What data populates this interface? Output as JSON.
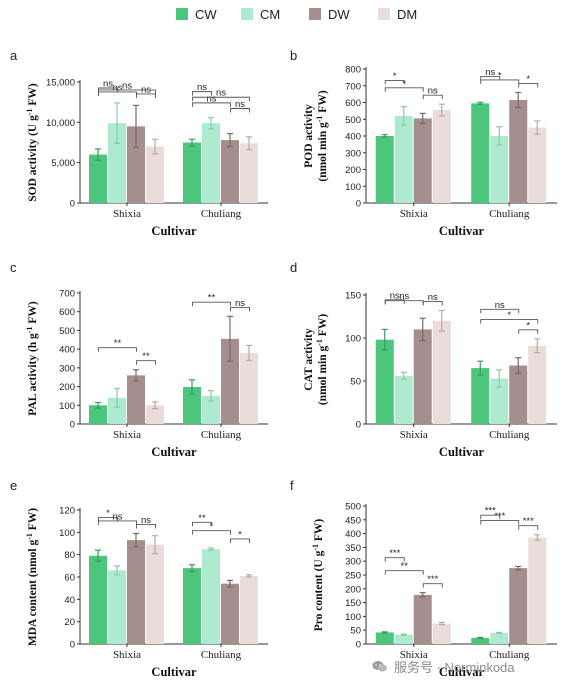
{
  "legend": {
    "items": [
      {
        "label": "CW",
        "color": "#4cc57d"
      },
      {
        "label": "CM",
        "color": "#aeead0"
      },
      {
        "label": "DW",
        "color": "#a48e8e"
      },
      {
        "label": "DM",
        "color": "#eadcd9"
      }
    ]
  },
  "watermark": {
    "text": "服务号 · Norminkoda"
  },
  "chart_data": [
    {
      "panel": "a",
      "type": "bar",
      "categories": [
        "Shixia",
        "Chuliang"
      ],
      "xlabel": "Cultivar",
      "ylabel": "SOD activity (U g⁻¹ FW)",
      "ylim": [
        0,
        15000
      ],
      "yticks": [
        0,
        5000,
        10000,
        15000
      ],
      "ytick_labels": [
        "0",
        "5,000",
        "10,000",
        "15,000"
      ],
      "series": [
        {
          "name": "CW",
          "values": [
            6000,
            7500
          ],
          "errors": [
            700,
            400
          ]
        },
        {
          "name": "CM",
          "values": [
            9900,
            9900
          ],
          "errors": [
            2500,
            700
          ]
        },
        {
          "name": "DW",
          "values": [
            9500,
            7800
          ],
          "errors": [
            2600,
            800
          ]
        },
        {
          "name": "DM",
          "values": [
            7000,
            7400
          ],
          "errors": [
            900,
            800
          ]
        }
      ],
      "significance": [
        {
          "from": 2,
          "to": 3,
          "label": "ns"
        },
        {
          "from": 0,
          "to": 2,
          "label": "ns"
        },
        {
          "from": 0,
          "to": 3,
          "label": "ns"
        },
        {
          "from": 0,
          "to": 1,
          "label": "ns"
        }
      ]
    },
    {
      "panel": "b",
      "type": "bar",
      "categories": [
        "Shixia",
        "Chuliang"
      ],
      "xlabel": "Cultivar",
      "ylabel": "POD activity (nmol min g⁻¹ FW)",
      "ylim": [
        0,
        800
      ],
      "yticks": [
        0,
        100,
        200,
        300,
        400,
        500,
        600,
        700,
        800
      ],
      "ytick_labels": [
        "0",
        "100",
        "200",
        "300",
        "400",
        "500",
        "600",
        "700",
        "800"
      ],
      "series": [
        {
          "name": "CW",
          "values": [
            400,
            595
          ],
          "errors": [
            8,
            6
          ]
        },
        {
          "name": "CM",
          "values": [
            520,
            400
          ],
          "errors": [
            55,
            55
          ]
        },
        {
          "name": "DW",
          "values": [
            505,
            615
          ],
          "errors": [
            30,
            45
          ]
        },
        {
          "name": "DM",
          "values": [
            555,
            450
          ],
          "errors": [
            35,
            40
          ]
        }
      ],
      "significance": [
        [
          {
            "from": 2,
            "to": 3,
            "label": "ns"
          },
          {
            "from": 0,
            "to": 2,
            "label": "*"
          },
          {
            "from": 0,
            "to": 1,
            "label": "*"
          }
        ],
        [
          {
            "from": 2,
            "to": 3,
            "label": "*"
          },
          {
            "from": 0,
            "to": 2,
            "label": "*"
          },
          {
            "from": 0,
            "to": 1,
            "label": "ns"
          }
        ]
      ]
    },
    {
      "panel": "c",
      "type": "bar",
      "categories": [
        "Shixia",
        "Chuliang"
      ],
      "xlabel": "Cultivar",
      "ylabel": "PAL activity (h g⁻¹ FW)",
      "ylim": [
        0,
        700
      ],
      "yticks": [
        0,
        100,
        200,
        300,
        400,
        500,
        600,
        700
      ],
      "ytick_labels": [
        "0",
        "100",
        "200",
        "300",
        "400",
        "500",
        "600",
        "700"
      ],
      "series": [
        {
          "name": "CW",
          "values": [
            100,
            198
          ],
          "errors": [
            15,
            38
          ]
        },
        {
          "name": "CM",
          "values": [
            140,
            150
          ],
          "errors": [
            50,
            28
          ]
        },
        {
          "name": "DW",
          "values": [
            260,
            455
          ],
          "errors": [
            30,
            120
          ]
        },
        {
          "name": "DM",
          "values": [
            100,
            380
          ],
          "errors": [
            18,
            40
          ]
        }
      ],
      "significance": [
        [
          {
            "from": 2,
            "to": 3,
            "label": "**"
          },
          {
            "from": 0,
            "to": 2,
            "label": "**"
          }
        ],
        [
          {
            "from": 2,
            "to": 3,
            "label": "ns"
          },
          {
            "from": 0,
            "to": 2,
            "label": "**"
          }
        ]
      ]
    },
    {
      "panel": "d",
      "type": "bar",
      "categories": [
        "Shixia",
        "Chuliang"
      ],
      "xlabel": "Cultivar",
      "ylabel": "CAT activity (nmol min g⁻¹ FW)",
      "ylim": [
        0,
        150
      ],
      "yticks": [
        0,
        50,
        100,
        150
      ],
      "ytick_labels": [
        "0",
        "50",
        "100",
        "150"
      ],
      "series": [
        {
          "name": "CW",
          "values": [
            98,
            65
          ],
          "errors": [
            12,
            8
          ]
        },
        {
          "name": "CM",
          "values": [
            56,
            53
          ],
          "errors": [
            4,
            10
          ]
        },
        {
          "name": "DW",
          "values": [
            110,
            68
          ],
          "errors": [
            13,
            9
          ]
        },
        {
          "name": "DM",
          "values": [
            120,
            91
          ],
          "errors": [
            12,
            8
          ]
        }
      ],
      "significance": [
        [
          {
            "from": 2,
            "to": 3,
            "label": "ns"
          },
          {
            "from": 0,
            "to": 2,
            "label": "ns"
          },
          {
            "from": 0,
            "to": 1,
            "label": "ns"
          }
        ],
        [
          {
            "from": 2,
            "to": 3,
            "label": "*"
          },
          {
            "from": 0,
            "to": 3,
            "label": "*"
          },
          {
            "from": 0,
            "to": 2,
            "label": "ns"
          }
        ]
      ]
    },
    {
      "panel": "e",
      "type": "bar",
      "categories": [
        "Shixia",
        "Chuliang"
      ],
      "xlabel": "Cultivar",
      "ylabel": "MDA content (nmol g⁻¹ FW)",
      "ylim": [
        0,
        120
      ],
      "yticks": [
        0,
        20,
        40,
        60,
        80,
        100,
        120
      ],
      "ytick_labels": [
        "0",
        "20",
        "40",
        "60",
        "80",
        "100",
        "120"
      ],
      "series": [
        {
          "name": "CW",
          "values": [
            79,
            68
          ],
          "errors": [
            5,
            3
          ]
        },
        {
          "name": "CM",
          "values": [
            66,
            85
          ],
          "errors": [
            4,
            1
          ]
        },
        {
          "name": "DW",
          "values": [
            93,
            54
          ],
          "errors": [
            6,
            3
          ]
        },
        {
          "name": "DM",
          "values": [
            89,
            61
          ],
          "errors": [
            8,
            1
          ]
        }
      ],
      "significance": [
        [
          {
            "from": 2,
            "to": 3,
            "label": "ns"
          },
          {
            "from": 0,
            "to": 2,
            "label": "ns"
          },
          {
            "from": 0,
            "to": 1,
            "label": "*"
          }
        ],
        [
          {
            "from": 2,
            "to": 3,
            "label": "*"
          },
          {
            "from": 0,
            "to": 2,
            "label": "*"
          },
          {
            "from": 0,
            "to": 1,
            "label": "**"
          }
        ]
      ]
    },
    {
      "panel": "f",
      "type": "bar",
      "categories": [
        "Shixia",
        "Chuliang"
      ],
      "xlabel": "Cultivar",
      "ylabel": "Pro content (U g⁻¹ FW)",
      "ylim": [
        0,
        500
      ],
      "yticks": [
        0,
        50,
        100,
        150,
        200,
        250,
        300,
        350,
        400,
        450,
        500
      ],
      "ytick_labels": [
        "0",
        "50",
        "100",
        "150",
        "200",
        "250",
        "300",
        "350",
        "400",
        "450",
        "500"
      ],
      "series": [
        {
          "name": "CW",
          "values": [
            42,
            22
          ],
          "errors": [
            2,
            2
          ]
        },
        {
          "name": "CM",
          "values": [
            34,
            40
          ],
          "errors": [
            2,
            2
          ]
        },
        {
          "name": "DW",
          "values": [
            178,
            275
          ],
          "errors": [
            8,
            6
          ]
        },
        {
          "name": "DM",
          "values": [
            74,
            386
          ],
          "errors": [
            4,
            10
          ]
        }
      ],
      "significance": [
        [
          {
            "from": 2,
            "to": 3,
            "label": "***"
          },
          {
            "from": 0,
            "to": 2,
            "label": "**"
          },
          {
            "from": 0,
            "to": 1,
            "label": "***"
          }
        ],
        [
          {
            "from": 2,
            "to": 3,
            "label": "***"
          },
          {
            "from": 0,
            "to": 2,
            "label": "***"
          },
          {
            "from": 0,
            "to": 1,
            "label": "***"
          }
        ]
      ]
    }
  ]
}
